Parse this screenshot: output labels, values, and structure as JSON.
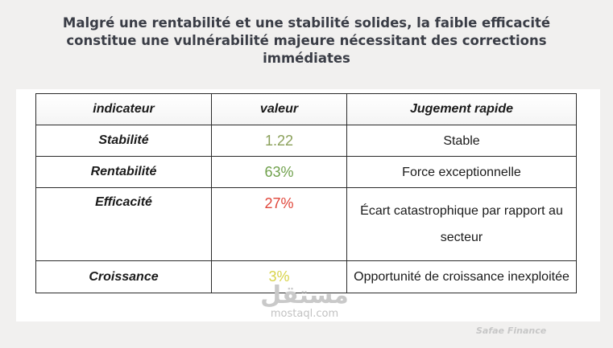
{
  "title": {
    "line1": "Malgré une rentabilité et une stabilité solides, la faible efficacité",
    "line2": "constitue une vulnérabilité majeure nécessitant des corrections",
    "line3": "immédiates"
  },
  "table": {
    "headers": [
      "indicateur",
      "valeur",
      "Jugement rapide"
    ],
    "rows": [
      {
        "indicator": "Stabilité",
        "value": "1.22",
        "value_color": "#8aa05a",
        "judgment": "Stable"
      },
      {
        "indicator": "Rentabilité",
        "value": "63%",
        "value_color": "#6fa04b",
        "judgment": "Force exceptionnelle"
      },
      {
        "indicator": "Efficacité",
        "value": "27%",
        "value_color": "#e0463a",
        "judgment": "Écart catastrophique par rapport au secteur"
      },
      {
        "indicator": "Croissance",
        "value": "3%",
        "value_color": "#d8d34a",
        "judgment": "Opportunité de croissance inexploitée"
      }
    ]
  },
  "watermark": {
    "arabic": "مستقل",
    "url": "mostaql.com"
  },
  "credit": "Safae Finance"
}
